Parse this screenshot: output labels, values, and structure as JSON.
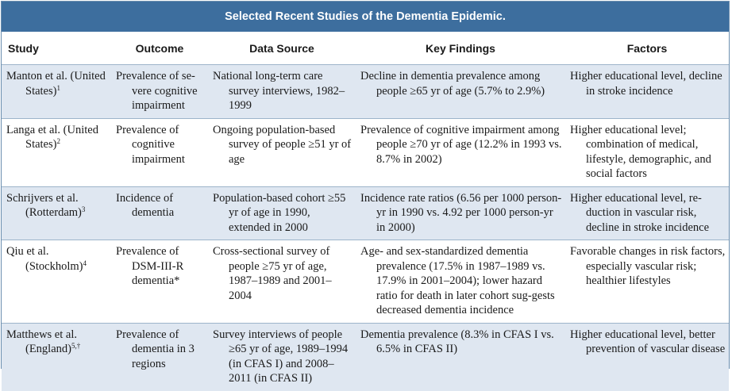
{
  "title": "Selected Recent Studies of the Dementia Epidemic.",
  "columns": [
    "Study",
    "Outcome",
    "Data Source",
    "Key Findings",
    "Factors"
  ],
  "rows": [
    {
      "study": "Manton et al. (United States)",
      "ref": "1",
      "outcome": "Prevalence of se-vere cognitive impairment",
      "source": "National long-term care survey interviews, 1982–1999",
      "findings": "Decline in dementia prevalence among people ≥65 yr of age (5.7% to 2.9%)",
      "factors": "Higher educational level, decline in stroke incidence"
    },
    {
      "study": "Langa et al. (United States)",
      "ref": "2",
      "outcome": "Prevalence of cognitive impairment",
      "source": "Ongoing population-based survey of people ≥51 yr of age",
      "findings": "Prevalence of cognitive impairment among people ≥70 yr of age (12.2% in 1993 vs. 8.7% in 2002)",
      "factors": "Higher educational level; combination of medical, lifestyle, demographic, and social factors"
    },
    {
      "study": "Schrijvers et al. (Rotterdam)",
      "ref": "3",
      "outcome": "Incidence of dementia",
      "source": "Population-based cohort ≥55 yr of age in 1990, extended in 2000",
      "findings": "Incidence rate ratios (6.56 per 1000 person-yr in 1990 vs. 4.92 per 1000 person-yr in 2000)",
      "factors": "Higher educational level, re-duction in vascular risk, decline in stroke incidence"
    },
    {
      "study": "Qiu et al. (Stockholm)",
      "ref": "4",
      "outcome": "Prevalence of DSM-III-R dementia*",
      "source": "Cross-sectional survey of people ≥75 yr of age, 1987–1989 and 2001–2004",
      "findings": "Age- and sex-standardized dementia prevalence (17.5% in 1987–1989 vs. 17.9% in 2001–2004); lower hazard ratio for death in later cohort sug-gests decreased dementia incidence",
      "factors": "Favorable changes in risk factors, especially vascular risk; healthier lifestyles"
    },
    {
      "study": "Matthews et al. (England)",
      "ref": "5,†",
      "outcome": "Prevalence of dementia in 3 regions",
      "source": "Survey interviews of people ≥65 yr of age, 1989–1994 (in CFAS I) and 2008–2011 (in CFAS II)",
      "findings": "Dementia prevalence (8.3% in CFAS I vs. 6.5% in CFAS II)",
      "factors": "Higher educational level, better prevention of vascular disease"
    }
  ]
}
